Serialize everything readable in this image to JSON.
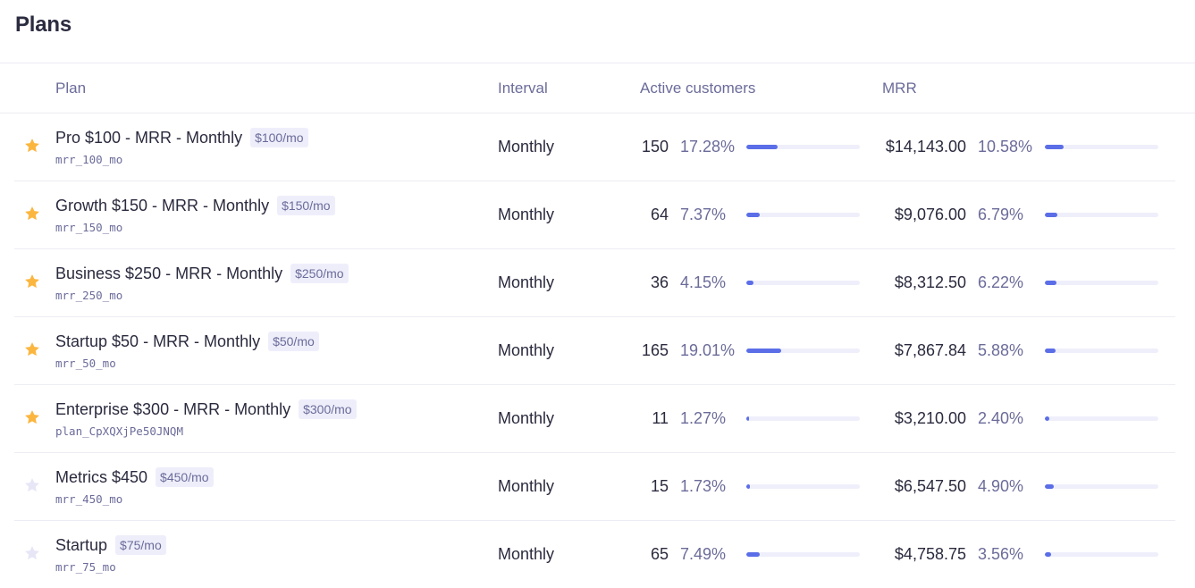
{
  "page": {
    "title": "Plans"
  },
  "table": {
    "headers": {
      "plan": "Plan",
      "interval": "Interval",
      "active_customers": "Active customers",
      "mrr": "MRR"
    },
    "rows": [
      {
        "starred": true,
        "name": "Pro $100 - MRR - Monthly",
        "price_badge": "$100/mo",
        "plan_id": "mrr_100_mo",
        "interval": "Monthly",
        "customers": "150",
        "customers_pct": "17.28%",
        "customers_bar": 17.28,
        "mrr": "$14,143.00",
        "mrr_pct": "10.58%",
        "mrr_bar": 10.58
      },
      {
        "starred": true,
        "name": "Growth $150 - MRR - Monthly",
        "price_badge": "$150/mo",
        "plan_id": "mrr_150_mo",
        "interval": "Monthly",
        "customers": "64",
        "customers_pct": "7.37%",
        "customers_bar": 7.37,
        "mrr": "$9,076.00",
        "mrr_pct": "6.79%",
        "mrr_bar": 6.79
      },
      {
        "starred": true,
        "name": "Business $250 - MRR - Monthly",
        "price_badge": "$250/mo",
        "plan_id": "mrr_250_mo",
        "interval": "Monthly",
        "customers": "36",
        "customers_pct": "4.15%",
        "customers_bar": 4.15,
        "mrr": "$8,312.50",
        "mrr_pct": "6.22%",
        "mrr_bar": 6.22
      },
      {
        "starred": true,
        "name": "Startup $50 - MRR - Monthly",
        "price_badge": "$50/mo",
        "plan_id": "mrr_50_mo",
        "interval": "Monthly",
        "customers": "165",
        "customers_pct": "19.01%",
        "customers_bar": 19.01,
        "mrr": "$7,867.84",
        "mrr_pct": "5.88%",
        "mrr_bar": 5.88
      },
      {
        "starred": true,
        "name": "Enterprise $300 - MRR - Monthly",
        "price_badge": "$300/mo",
        "plan_id": "plan_CpXQXjPe50JNQM",
        "interval": "Monthly",
        "customers": "11",
        "customers_pct": "1.27%",
        "customers_bar": 1.27,
        "mrr": "$3,210.00",
        "mrr_pct": "2.40%",
        "mrr_bar": 2.4
      },
      {
        "starred": false,
        "name": "Metrics $450",
        "price_badge": "$450/mo",
        "plan_id": "mrr_450_mo",
        "interval": "Monthly",
        "customers": "15",
        "customers_pct": "1.73%",
        "customers_bar": 1.73,
        "mrr": "$6,547.50",
        "mrr_pct": "4.90%",
        "mrr_bar": 4.9
      },
      {
        "starred": false,
        "name": "Startup",
        "price_badge": "$75/mo",
        "plan_id": "mrr_75_mo",
        "interval": "Monthly",
        "customers": "65",
        "customers_pct": "7.49%",
        "customers_bar": 7.49,
        "mrr": "$4,758.75",
        "mrr_pct": "3.56%",
        "mrr_bar": 3.56
      }
    ]
  },
  "colors": {
    "star_on": "#fbb640",
    "star_off": "#e6e6f7",
    "bar_fill": "#5b6ee8",
    "bar_track": "#efeffb",
    "muted_text": "#6b6b9a"
  }
}
